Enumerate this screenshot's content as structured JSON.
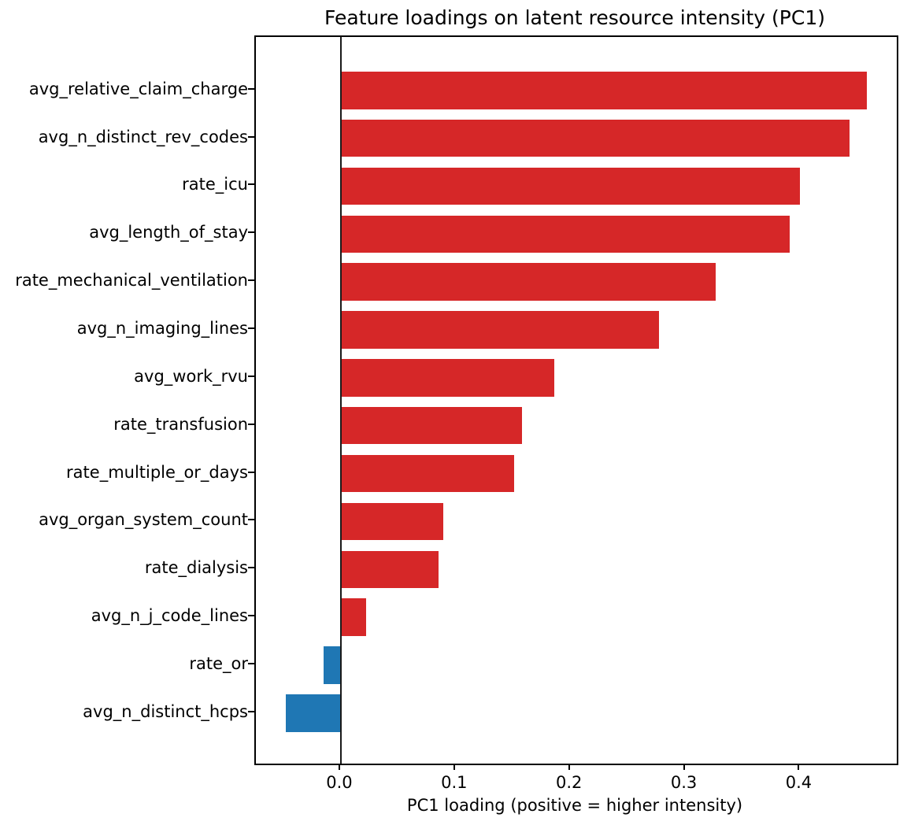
{
  "chart_data": {
    "type": "bar",
    "orientation": "horizontal",
    "title": "Feature loadings on latent resource intensity (PC1)",
    "xlabel": "PC1 loading (positive = higher intensity)",
    "ylabel": "",
    "categories": [
      "avg_relative_claim_charge",
      "avg_n_distinct_rev_codes",
      "rate_icu",
      "avg_length_of_stay",
      "rate_mechanical_ventilation",
      "avg_n_imaging_lines",
      "avg_work_rvu",
      "rate_transfusion",
      "rate_multiple_or_days",
      "avg_organ_system_count",
      "rate_dialysis",
      "avg_n_j_code_lines",
      "rate_or",
      "avg_n_distinct_hcps"
    ],
    "values": [
      0.458,
      0.443,
      0.4,
      0.391,
      0.326,
      0.277,
      0.186,
      0.158,
      0.151,
      0.089,
      0.085,
      0.022,
      -0.015,
      -0.048
    ],
    "xlim": [
      -0.074,
      0.484
    ],
    "xticks": [
      0.0,
      0.1,
      0.2,
      0.3,
      0.4
    ],
    "xtick_labels": [
      "0.0",
      "0.1",
      "0.2",
      "0.3",
      "0.4"
    ],
    "grid": false,
    "legend": "none",
    "zero_line": true,
    "colors": {
      "positive_bar": "#d62728",
      "negative_bar": "#1f77b4",
      "axis": "#000000",
      "background": "#ffffff"
    }
  }
}
